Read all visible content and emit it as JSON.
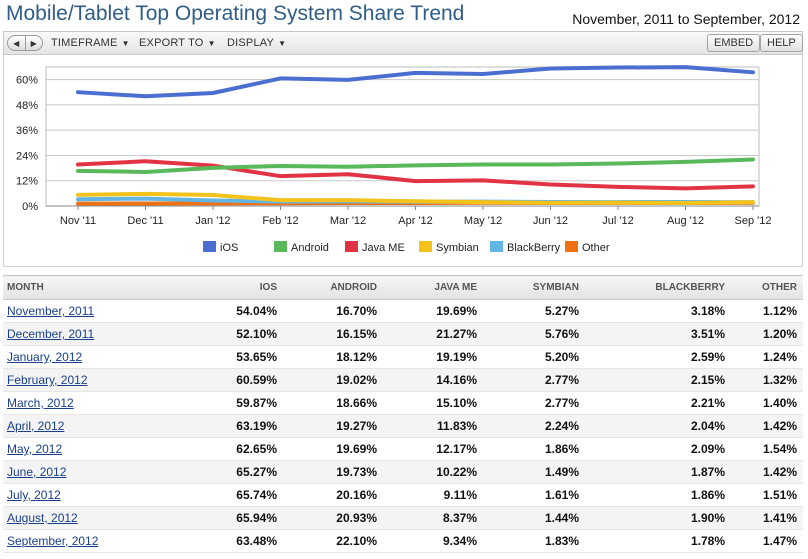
{
  "header": {
    "title": "Mobile/Tablet Top Operating System Share Trend",
    "date_range": "November, 2011 to September, 2012"
  },
  "toolbar": {
    "back_glyph": "◀",
    "forward_glyph": "▶",
    "timeframe_label": "TIMEFRAME",
    "export_label": "EXPORT TO",
    "display_label": "DISPLAY",
    "embed_label": "EMBED",
    "help_label": "HELP",
    "caret": "▼"
  },
  "chart_data": {
    "type": "line",
    "x": [
      "Nov '11",
      "Dec '11",
      "Jan '12",
      "Feb '12",
      "Mar '12",
      "Apr '12",
      "May '12",
      "Jun '12",
      "Jul '12",
      "Aug '12",
      "Sep '12"
    ],
    "yticks": [
      "0%",
      "12%",
      "24%",
      "36%",
      "48%",
      "60%"
    ],
    "ylim": [
      0,
      66
    ],
    "grid": true,
    "legend_position": "bottom",
    "series": [
      {
        "name": "iOS",
        "color": "#4a6fd0",
        "values": [
          54.04,
          52.1,
          53.65,
          60.59,
          59.87,
          63.19,
          62.65,
          65.27,
          65.74,
          65.94,
          63.48
        ]
      },
      {
        "name": "Android",
        "color": "#58b85a",
        "values": [
          16.7,
          16.15,
          18.12,
          19.02,
          18.66,
          19.27,
          19.69,
          19.73,
          20.16,
          20.93,
          22.1
        ]
      },
      {
        "name": "Java ME",
        "color": "#e23345",
        "values": [
          19.69,
          21.27,
          19.19,
          14.16,
          15.1,
          11.83,
          12.17,
          10.22,
          9.11,
          8.37,
          9.34
        ]
      },
      {
        "name": "Symbian",
        "color": "#f3c21b",
        "values": [
          5.27,
          5.76,
          5.2,
          2.77,
          2.77,
          2.24,
          1.86,
          1.49,
          1.61,
          1.44,
          1.83
        ]
      },
      {
        "name": "BlackBerry",
        "color": "#62b6e6",
        "values": [
          3.18,
          3.51,
          2.59,
          2.15,
          2.21,
          2.04,
          2.09,
          1.87,
          1.86,
          1.9,
          1.78
        ]
      },
      {
        "name": "Other",
        "color": "#ee7114",
        "values": [
          1.12,
          1.2,
          1.24,
          1.32,
          1.4,
          1.42,
          1.54,
          1.42,
          1.51,
          1.41,
          1.47
        ]
      }
    ]
  },
  "table": {
    "columns": [
      "MONTH",
      "IOS",
      "ANDROID",
      "JAVA ME",
      "SYMBIAN",
      "BLACKBERRY",
      "OTHER"
    ],
    "rows": [
      [
        "November, 2011",
        "54.04%",
        "16.70%",
        "19.69%",
        "5.27%",
        "3.18%",
        "1.12%"
      ],
      [
        "December, 2011",
        "52.10%",
        "16.15%",
        "21.27%",
        "5.76%",
        "3.51%",
        "1.20%"
      ],
      [
        "January, 2012",
        "53.65%",
        "18.12%",
        "19.19%",
        "5.20%",
        "2.59%",
        "1.24%"
      ],
      [
        "February, 2012",
        "60.59%",
        "19.02%",
        "14.16%",
        "2.77%",
        "2.15%",
        "1.32%"
      ],
      [
        "March, 2012",
        "59.87%",
        "18.66%",
        "15.10%",
        "2.77%",
        "2.21%",
        "1.40%"
      ],
      [
        "April, 2012",
        "63.19%",
        "19.27%",
        "11.83%",
        "2.24%",
        "2.04%",
        "1.42%"
      ],
      [
        "May, 2012",
        "62.65%",
        "19.69%",
        "12.17%",
        "1.86%",
        "2.09%",
        "1.54%"
      ],
      [
        "June, 2012",
        "65.27%",
        "19.73%",
        "10.22%",
        "1.49%",
        "1.87%",
        "1.42%"
      ],
      [
        "July, 2012",
        "65.74%",
        "20.16%",
        "9.11%",
        "1.61%",
        "1.86%",
        "1.51%"
      ],
      [
        "August, 2012",
        "65.94%",
        "20.93%",
        "8.37%",
        "1.44%",
        "1.90%",
        "1.41%"
      ],
      [
        "September, 2012",
        "63.48%",
        "22.10%",
        "9.34%",
        "1.83%",
        "1.78%",
        "1.47%"
      ]
    ]
  }
}
